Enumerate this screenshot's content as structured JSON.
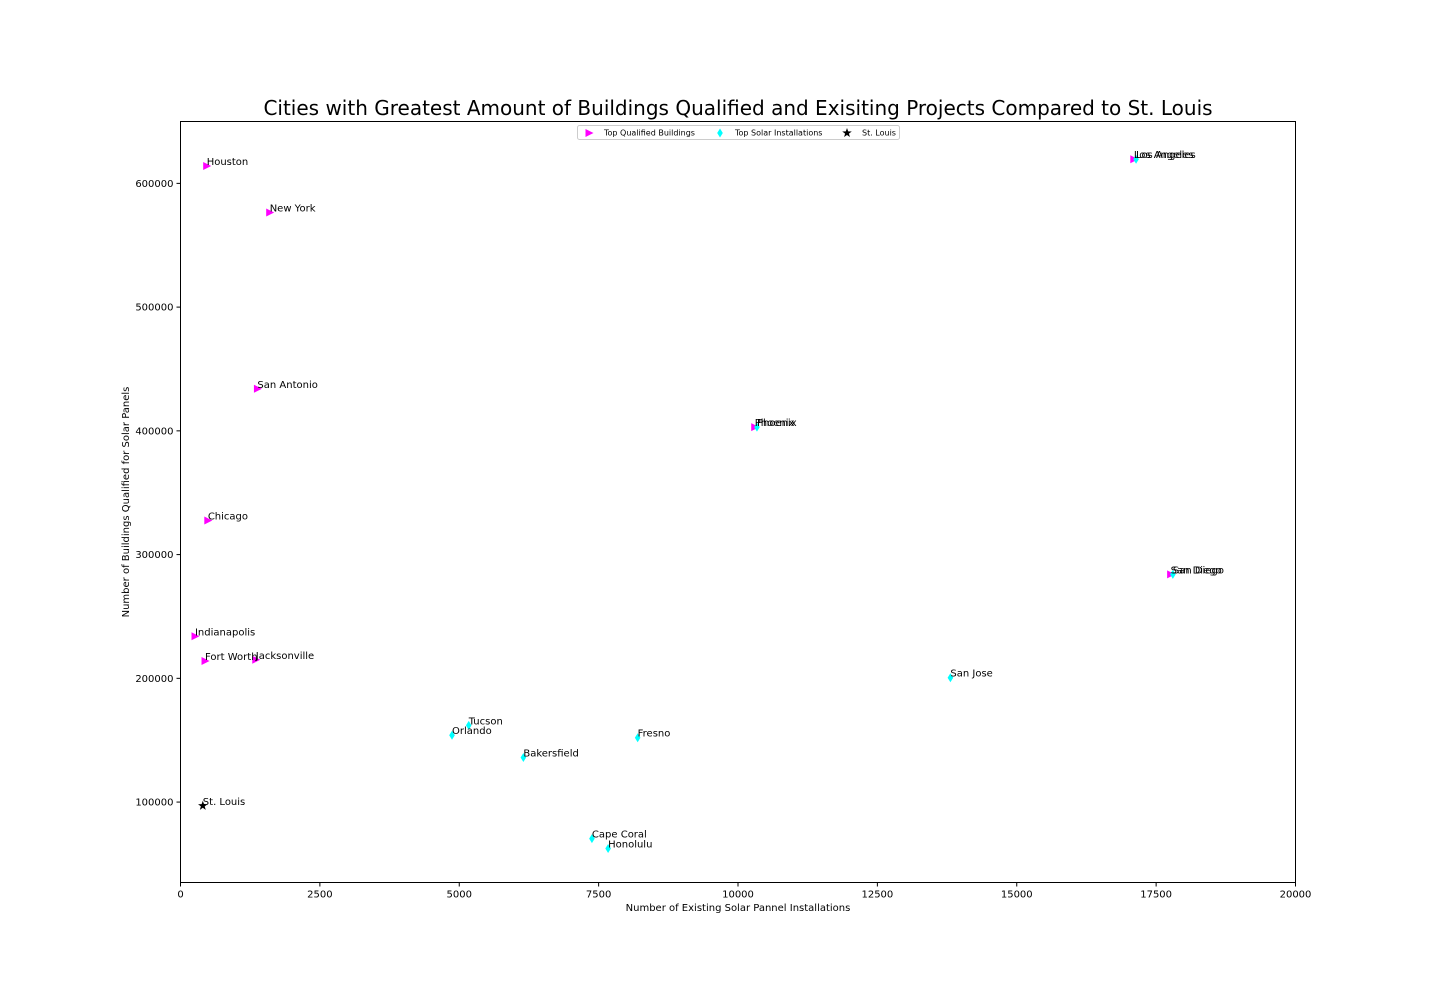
{
  "chart_data": {
    "type": "scatter",
    "title": "Cities with Greatest Amount of Buildings Qualified and Exisiting Projects Compared to St. Louis",
    "xlabel": "Number of Existing Solar Pannel Installations",
    "ylabel": "Number of Buildings Qualified for Solar Panels",
    "xlim": [
      0,
      20000
    ],
    "ylim": [
      35000,
      650000
    ],
    "xticks": [
      0,
      2500,
      5000,
      7500,
      10000,
      12500,
      15000,
      17500,
      20000
    ],
    "yticks": [
      100000,
      200000,
      300000,
      400000,
      500000,
      600000
    ],
    "grid": false,
    "legend_position": "top-center",
    "series": [
      {
        "name": "Top Qualified Buildings",
        "marker": "triangle-right",
        "color": "#ff00ff",
        "points": [
          {
            "label": "Houston",
            "x": 470,
            "y": 614000
          },
          {
            "label": "New York",
            "x": 1600,
            "y": 576500
          },
          {
            "label": "San Antonio",
            "x": 1380,
            "y": 434000
          },
          {
            "label": "Chicago",
            "x": 490,
            "y": 327500
          },
          {
            "label": "Indianapolis",
            "x": 260,
            "y": 234000
          },
          {
            "label": "Fort Worth",
            "x": 440,
            "y": 214000
          },
          {
            "label": "Jacksonville",
            "x": 1350,
            "y": 215000
          },
          {
            "label": "Los Angeles",
            "x": 17100,
            "y": 619500
          },
          {
            "label": "Phoenix",
            "x": 10300,
            "y": 403000
          },
          {
            "label": "San Diego",
            "x": 17760,
            "y": 284000
          }
        ]
      },
      {
        "name": "Top Solar Installations",
        "marker": "thin-diamond",
        "color": "#00ffff",
        "points": [
          {
            "label": "Los Angeles",
            "x": 17140,
            "y": 619500
          },
          {
            "label": "Phoenix",
            "x": 10340,
            "y": 403000
          },
          {
            "label": "San Diego",
            "x": 17800,
            "y": 284000
          },
          {
            "label": "San Jose",
            "x": 13810,
            "y": 200500
          },
          {
            "label": "Tucson",
            "x": 5170,
            "y": 162000
          },
          {
            "label": "Orlando",
            "x": 4870,
            "y": 154000
          },
          {
            "label": "Fresno",
            "x": 8200,
            "y": 152000
          },
          {
            "label": "Bakersfield",
            "x": 6150,
            "y": 136000
          },
          {
            "label": "Cape Coral",
            "x": 7380,
            "y": 70500
          },
          {
            "label": "Honolulu",
            "x": 7670,
            "y": 62500
          }
        ]
      },
      {
        "name": "St. Louis",
        "marker": "star",
        "color": "#000000",
        "points": [
          {
            "label": "St. Louis",
            "x": 400,
            "y": 97000
          }
        ]
      }
    ]
  }
}
